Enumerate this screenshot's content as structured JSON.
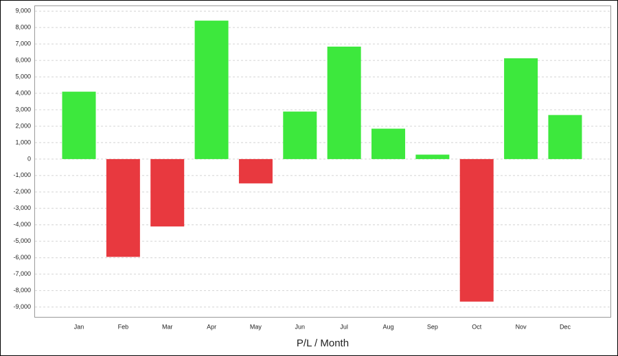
{
  "chart_data": {
    "type": "bar",
    "x_label": "P/L / Month",
    "categories": [
      "Jan",
      "Feb",
      "Mar",
      "Apr",
      "May",
      "Jun",
      "Jul",
      "Aug",
      "Sep",
      "Oct",
      "Nov",
      "Dec"
    ],
    "values": [
      4100,
      -5950,
      -4100,
      8420,
      -1480,
      2890,
      6840,
      1850,
      270,
      -8670,
      6130,
      2680
    ],
    "positive_color": "#3de83d",
    "negative_color": "#e8393f",
    "ylim": [
      -9600,
      9300
    ],
    "yticks": [
      {
        "value": -9000,
        "label": "-9,000"
      },
      {
        "value": -8000,
        "label": "-8,000"
      },
      {
        "value": -7000,
        "label": "-7,000"
      },
      {
        "value": -6000,
        "label": "-6,000"
      },
      {
        "value": -5000,
        "label": "-5,000"
      },
      {
        "value": -4000,
        "label": "-4,000"
      },
      {
        "value": -3000,
        "label": "-3,000"
      },
      {
        "value": -2000,
        "label": "-2,000"
      },
      {
        "value": -1000,
        "label": "-1,000"
      },
      0,
      {
        "value": 1000,
        "label": "1,000"
      },
      {
        "value": 2000,
        "label": "2,000"
      },
      {
        "value": 3000,
        "label": "3,000"
      },
      {
        "value": 4000,
        "label": "4,000"
      },
      {
        "value": 5000,
        "label": "5,000"
      },
      {
        "value": 6000,
        "label": "6,000"
      },
      {
        "value": 7000,
        "label": "7,000"
      },
      {
        "value": 8000,
        "label": "8,000"
      },
      {
        "value": 9000,
        "label": "9,000"
      }
    ],
    "grid": true
  }
}
